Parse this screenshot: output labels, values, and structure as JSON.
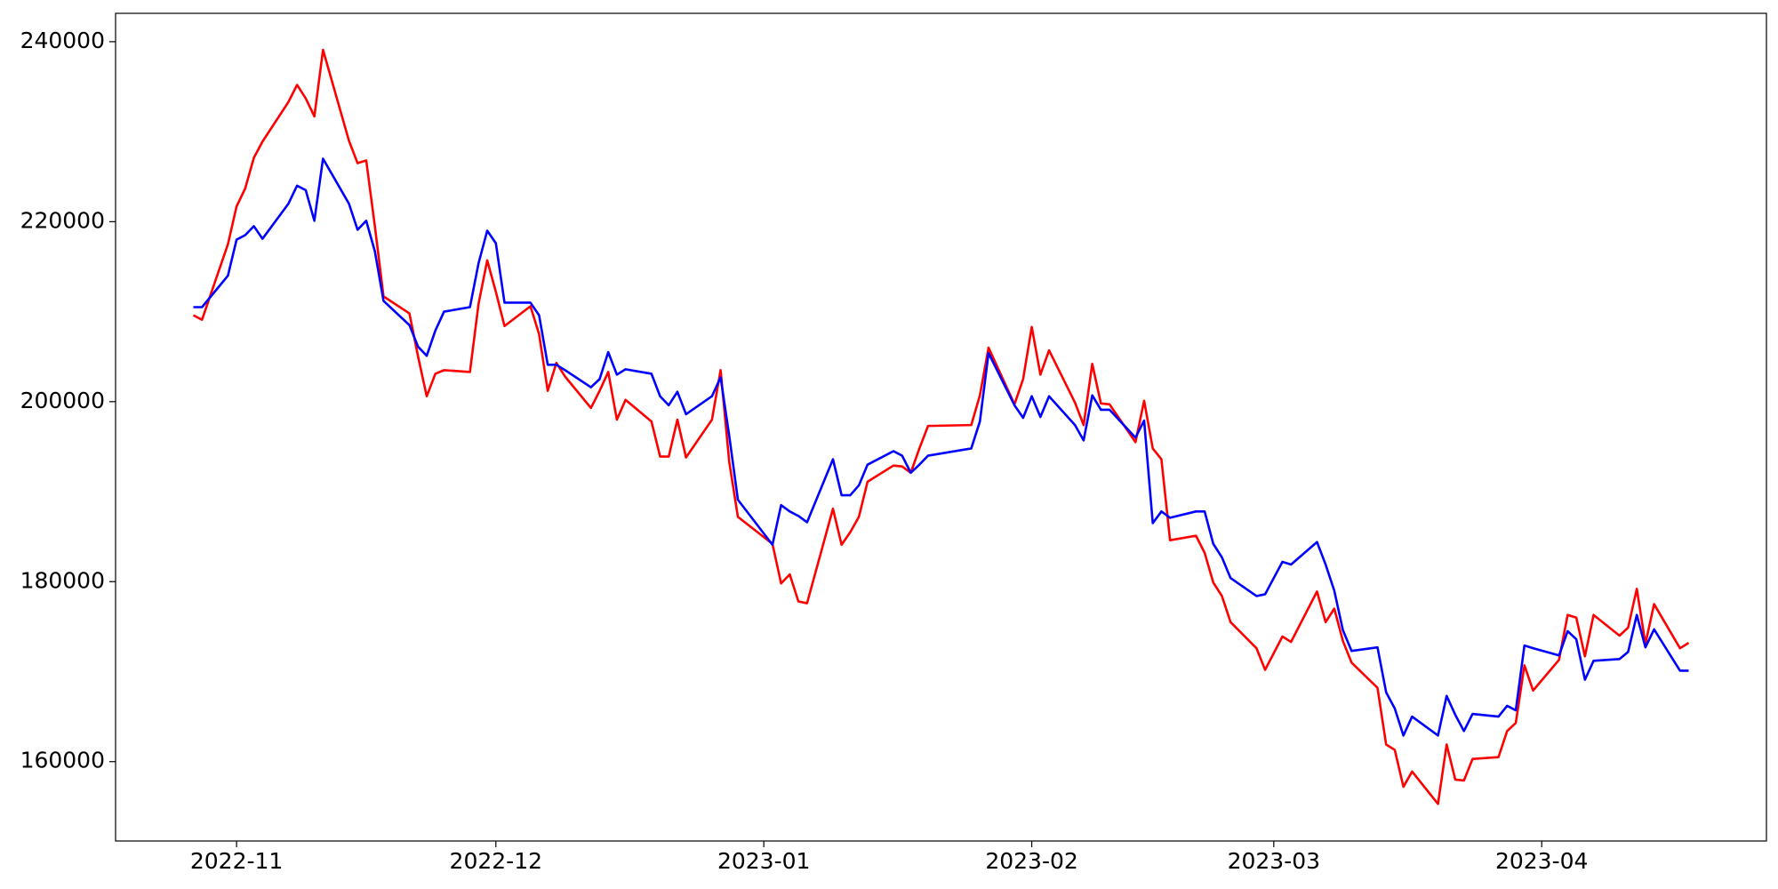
{
  "chart_data": {
    "type": "line",
    "x": [
      "2022-10-27",
      "2022-10-28",
      "2022-10-31",
      "2022-11-01",
      "2022-11-02",
      "2022-11-03",
      "2022-11-04",
      "2022-11-07",
      "2022-11-08",
      "2022-11-09",
      "2022-11-10",
      "2022-11-11",
      "2022-11-14",
      "2022-11-15",
      "2022-11-16",
      "2022-11-17",
      "2022-11-18",
      "2022-11-21",
      "2022-11-22",
      "2022-11-23",
      "2022-11-24",
      "2022-11-25",
      "2022-11-28",
      "2022-11-29",
      "2022-11-30",
      "2022-12-01",
      "2022-12-02",
      "2022-12-05",
      "2022-12-06",
      "2022-12-07",
      "2022-12-08",
      "2022-12-09",
      "2022-12-12",
      "2022-12-13",
      "2022-12-14",
      "2022-12-15",
      "2022-12-16",
      "2022-12-19",
      "2022-12-20",
      "2022-12-21",
      "2022-12-22",
      "2022-12-23",
      "2022-12-26",
      "2022-12-27",
      "2022-12-28",
      "2022-12-29",
      "2023-01-02",
      "2023-01-03",
      "2023-01-04",
      "2023-01-05",
      "2023-01-06",
      "2023-01-09",
      "2023-01-10",
      "2023-01-11",
      "2023-01-12",
      "2023-01-13",
      "2023-01-16",
      "2023-01-17",
      "2023-01-18",
      "2023-01-19",
      "2023-01-20",
      "2023-01-25",
      "2023-01-26",
      "2023-01-27",
      "2023-01-30",
      "2023-01-31",
      "2023-02-01",
      "2023-02-02",
      "2023-02-03",
      "2023-02-06",
      "2023-02-07",
      "2023-02-08",
      "2023-02-09",
      "2023-02-10",
      "2023-02-13",
      "2023-02-14",
      "2023-02-15",
      "2023-02-16",
      "2023-02-17",
      "2023-02-20",
      "2023-02-21",
      "2023-02-22",
      "2023-02-23",
      "2023-02-24",
      "2023-02-27",
      "2023-02-28",
      "2023-03-02",
      "2023-03-03",
      "2023-03-06",
      "2023-03-07",
      "2023-03-08",
      "2023-03-09",
      "2023-03-10",
      "2023-03-13",
      "2023-03-14",
      "2023-03-15",
      "2023-03-16",
      "2023-03-17",
      "2023-03-20",
      "2023-03-21",
      "2023-03-22",
      "2023-03-23",
      "2023-03-24",
      "2023-03-27",
      "2023-03-28",
      "2023-03-29",
      "2023-03-30",
      "2023-03-31",
      "2023-04-03",
      "2023-04-04",
      "2023-04-05",
      "2023-04-06",
      "2023-04-07",
      "2023-04-10",
      "2023-04-11",
      "2023-04-12",
      "2023-04-13",
      "2023-04-14",
      "2023-04-17",
      "2023-04-18"
    ],
    "series": [
      {
        "color": "#ff0000",
        "values": [
          209600,
          209100,
          217500,
          221700,
          223700,
          227100,
          228900,
          233300,
          235200,
          233700,
          231700,
          239100,
          229000,
          226500,
          226800,
          219500,
          211700,
          209800,
          205000,
          200600,
          203100,
          203500,
          203300,
          210900,
          215700,
          212200,
          208400,
          210600,
          207500,
          201200,
          204300,
          202800,
          199300,
          201200,
          203300,
          198000,
          200200,
          197800,
          193900,
          193900,
          198000,
          193800,
          198000,
          203500,
          193300,
          187200,
          184200,
          179800,
          180800,
          177800,
          177600,
          188100,
          184100,
          185500,
          187200,
          191100,
          192900,
          192800,
          192100,
          194800,
          197300,
          197400,
          200700,
          206000,
          199700,
          202500,
          208300,
          203000,
          205700,
          199900,
          197400,
          204200,
          199800,
          199700,
          195500,
          200100,
          194800,
          193600,
          184600,
          185100,
          183200,
          179900,
          178400,
          175500,
          172600,
          170200,
          173900,
          173300,
          178900,
          175500,
          177000,
          173400,
          171000,
          168200,
          161900,
          161300,
          157200,
          158900,
          155300,
          161900,
          158000,
          157900,
          160300,
          160500,
          163400,
          164300,
          170700,
          167900,
          171300,
          176300,
          176000,
          171700,
          176300,
          174000,
          174900,
          179200,
          173100,
          177500,
          172600,
          173200
        ]
      },
      {
        "color": "#0000ff",
        "values": [
          210500,
          210500,
          214000,
          218000,
          218500,
          219500,
          218100,
          222000,
          224000,
          223500,
          220100,
          227000,
          222000,
          219100,
          220100,
          216700,
          211200,
          208500,
          206100,
          205100,
          207900,
          210000,
          210500,
          215400,
          219000,
          217600,
          211000,
          211000,
          209600,
          204100,
          204100,
          203500,
          201600,
          202500,
          205500,
          203000,
          203600,
          203100,
          200600,
          199600,
          201100,
          198600,
          200600,
          202700,
          196200,
          189100,
          184100,
          188500,
          187800,
          187300,
          186600,
          193600,
          189600,
          189600,
          190700,
          193000,
          194500,
          194000,
          192100,
          193000,
          194000,
          194800,
          197800,
          205400,
          199600,
          198200,
          200600,
          198300,
          200600,
          197400,
          195700,
          200700,
          199100,
          199100,
          196000,
          197900,
          186500,
          187800,
          187100,
          187800,
          187800,
          184200,
          182700,
          180400,
          178400,
          178600,
          182200,
          181900,
          184400,
          181900,
          179000,
          174600,
          172300,
          172700,
          167700,
          165900,
          162900,
          165000,
          162900,
          167300,
          165200,
          163400,
          165300,
          165000,
          166200,
          165700,
          172900,
          172600,
          171800,
          174500,
          173600,
          169100,
          171200,
          171400,
          172200,
          176300,
          172700,
          174700,
          170100,
          170100
        ]
      }
    ],
    "xlim": [
      "2022-10-18",
      "2023-04-27"
    ],
    "xticks": [
      {
        "value": "2022-11-01",
        "label": "2022-11"
      },
      {
        "value": "2022-12-01",
        "label": "2022-12"
      },
      {
        "value": "2023-01-01",
        "label": "2023-01"
      },
      {
        "value": "2023-02-01",
        "label": "2023-02"
      },
      {
        "value": "2023-03-01",
        "label": "2023-03"
      },
      {
        "value": "2023-04-01",
        "label": "2023-04"
      }
    ],
    "ylim": [
      151180,
      243150
    ],
    "yticks": [
      160000,
      180000,
      200000,
      220000,
      240000
    ]
  }
}
